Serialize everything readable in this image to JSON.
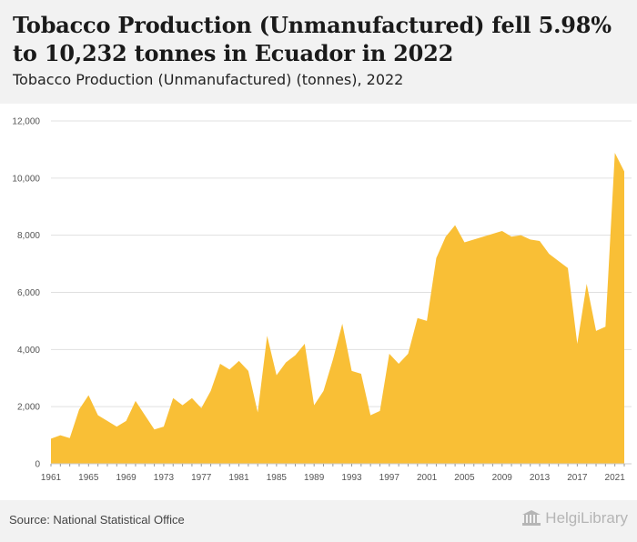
{
  "header": {
    "title": "Tobacco Production (Unmanufactured) fell 5.98% to 10,232 tonnes in Ecuador in 2022",
    "subtitle": "Tobacco Production (Unmanufactured) (tonnes), 2022"
  },
  "footer": {
    "source": "Source: National Statistical Office",
    "logo_text": "HelgiLibrary"
  },
  "colors": {
    "area_fill": "#f9bf36",
    "grid": "#e0e0e0",
    "header_bg": "#f2f2f2",
    "plot_bg": "#ffffff"
  },
  "chart_data": {
    "type": "area",
    "title": "Tobacco Production (Unmanufactured) (tonnes), 2022",
    "xlabel": "",
    "ylabel": "",
    "ylim": [
      0,
      12000
    ],
    "y_ticks": [
      "0",
      "2,000",
      "4,000",
      "6,000",
      "8,000",
      "10,000",
      "12,000"
    ],
    "x_ticks": [
      "1961",
      "1965",
      "1969",
      "1973",
      "1977",
      "1981",
      "1985",
      "1989",
      "1993",
      "1997",
      "2001",
      "2005",
      "2009",
      "2013",
      "2017",
      "2021"
    ],
    "grid": true,
    "x": [
      1961,
      1962,
      1963,
      1964,
      1965,
      1966,
      1967,
      1968,
      1969,
      1970,
      1971,
      1972,
      1973,
      1974,
      1975,
      1976,
      1977,
      1978,
      1979,
      1980,
      1981,
      1982,
      1983,
      1984,
      1985,
      1986,
      1987,
      1988,
      1989,
      1990,
      1991,
      1992,
      1993,
      1994,
      1995,
      1996,
      1997,
      1998,
      1999,
      2000,
      2001,
      2002,
      2003,
      2004,
      2005,
      2006,
      2007,
      2008,
      2009,
      2010,
      2011,
      2012,
      2013,
      2014,
      2015,
      2016,
      2017,
      2018,
      2019,
      2020,
      2021,
      2022
    ],
    "values": [
      880,
      1000,
      900,
      1900,
      2400,
      1700,
      1500,
      1300,
      1500,
      2200,
      1700,
      1200,
      1300,
      2300,
      2050,
      2300,
      1950,
      2550,
      3500,
      3300,
      3600,
      3250,
      1800,
      4480,
      3100,
      3550,
      3800,
      4200,
      2050,
      2550,
      3650,
      4900,
      3250,
      3150,
      1700,
      1850,
      3850,
      3500,
      3850,
      5100,
      5000,
      7200,
      7950,
      8350,
      7750,
      7850,
      7950,
      8050,
      8150,
      7950,
      8000,
      7850,
      7800,
      7350,
      7100,
      6850,
      4200,
      6300,
      4650,
      4800,
      10883,
      10232
    ]
  }
}
